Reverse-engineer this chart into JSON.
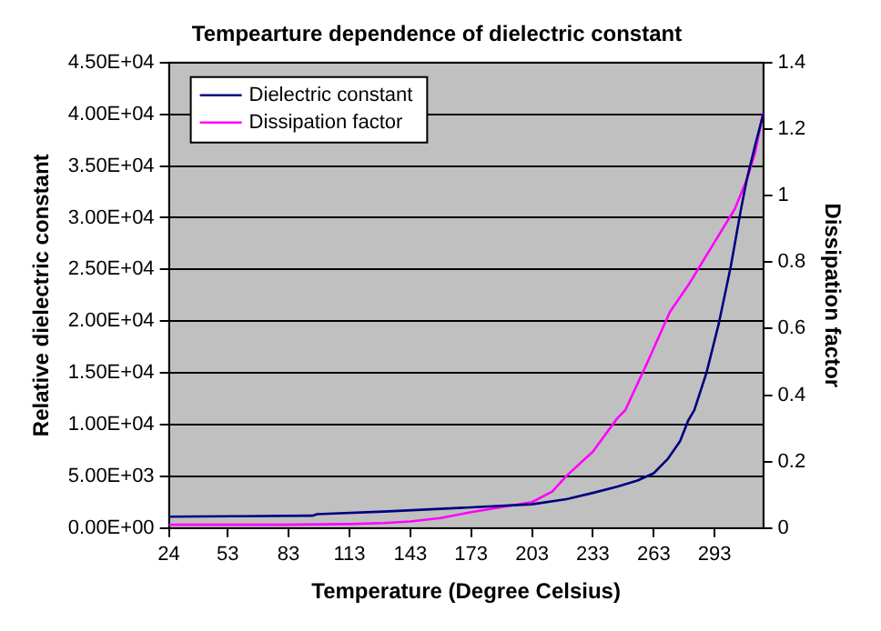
{
  "chart_data": {
    "type": "line",
    "title": "Tempearture dependence of dielectric constant",
    "xlabel": "Temperature (Degree Celsius)",
    "ylabel": "Relative dielectric constant",
    "y2label": "Dissipation factor",
    "xlim": [
      24,
      317
    ],
    "xticks": [
      24,
      53,
      83,
      113,
      143,
      173,
      203,
      233,
      263,
      293
    ],
    "ylim": [
      0,
      45000
    ],
    "yticks": [
      {
        "value": 0,
        "label": "0.00E+00"
      },
      {
        "value": 5000,
        "label": "5.00E+03"
      },
      {
        "value": 10000,
        "label": "1.00E+04"
      },
      {
        "value": 15000,
        "label": "1.50E+04"
      },
      {
        "value": 20000,
        "label": "2.00E+04"
      },
      {
        "value": 25000,
        "label": "2.50E+04"
      },
      {
        "value": 30000,
        "label": "3.00E+04"
      },
      {
        "value": 35000,
        "label": "3.50E+04"
      },
      {
        "value": 40000,
        "label": "4.00E+04"
      },
      {
        "value": 45000,
        "label": "4.50E+04"
      }
    ],
    "y2lim": [
      0,
      1.4
    ],
    "y2ticks": [
      0,
      0.2,
      0.4,
      0.6,
      0.8,
      1,
      1.2,
      1.4
    ],
    "grid": "y",
    "legend": "top left",
    "marker": "none",
    "line_style": "solid",
    "series": [
      {
        "name": "Dielectric constant",
        "color": "#000080",
        "x": [
          24,
          60,
          95,
          97,
          130,
          173,
          203,
          220,
          233,
          245,
          255,
          263,
          270,
          276,
          280,
          283,
          289,
          295,
          301,
          306,
          309,
          313,
          317
        ],
        "values": [
          1100,
          1150,
          1200,
          1350,
          1600,
          2000,
          2300,
          2800,
          3400,
          4000,
          4600,
          5300,
          6700,
          8400,
          10400,
          11400,
          15000,
          19700,
          25300,
          30800,
          33800,
          37000,
          40000
        ]
      },
      {
        "name": "Dissipation factor",
        "axis": "y2",
        "color": "#ff00ff",
        "x": [
          24,
          80,
          113,
          130,
          143,
          158,
          173,
          190,
          203,
          213,
          220,
          233,
          245,
          249,
          260,
          271,
          280,
          286,
          297,
          303,
          309,
          313,
          317
        ],
        "values": [
          0.01,
          0.01,
          0.012,
          0.015,
          0.02,
          0.03,
          0.048,
          0.065,
          0.078,
          0.11,
          0.157,
          0.23,
          0.33,
          0.355,
          0.5,
          0.65,
          0.73,
          0.79,
          0.9,
          0.96,
          1.05,
          1.13,
          1.25
        ]
      }
    ]
  }
}
